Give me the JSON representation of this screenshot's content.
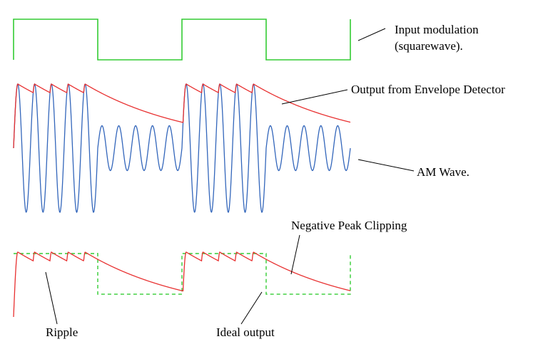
{
  "colors": {
    "modulation": "#33cc33",
    "envelope": "#e83030",
    "am_wave": "#3366bb",
    "ideal_output": "#33cc33",
    "leader_lines": "#000000"
  },
  "labels": {
    "input_modulation_line1": "Input modulation",
    "input_modulation_line2": "(squarewave).",
    "envelope_output": "Output from Envelope Detector",
    "am_wave": "AM Wave.",
    "negative_peak_clipping": "Negative Peak Clipping",
    "ripple": "Ripple",
    "ideal_output": "Ideal output"
  },
  "signal": {
    "modulation": "squarewave",
    "high_cycles_per_phase": 5,
    "low_cycles_per_phase": 5,
    "phases": 4,
    "high_amplitude": 1.0,
    "low_amplitude": 0.35
  }
}
